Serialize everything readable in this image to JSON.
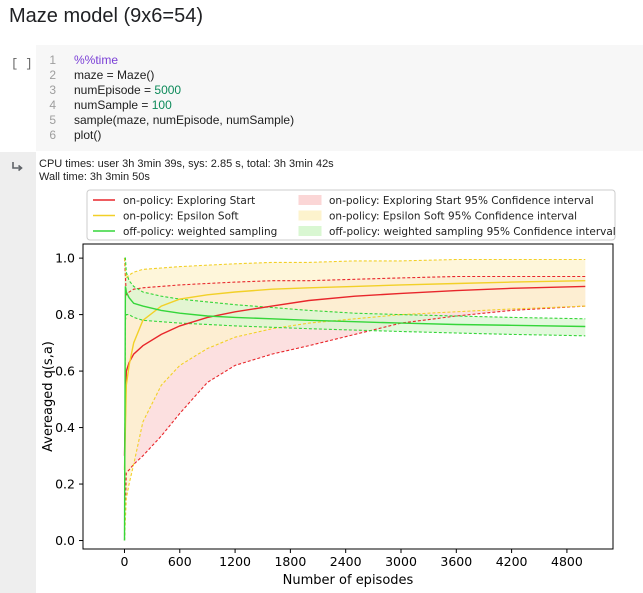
{
  "heading": "Maze model (9x6=54)",
  "cell": {
    "run_indicator": "[ ]",
    "lines": [
      {
        "n": "1",
        "kind": "magic",
        "text": "%%time"
      },
      {
        "n": "2",
        "kind": "plain",
        "text": "maze = Maze()"
      },
      {
        "n": "3",
        "kind": "assign-num",
        "text": "numEpisode = ",
        "num": "5000"
      },
      {
        "n": "4",
        "kind": "assign-num",
        "text": "numSample = ",
        "num": "100"
      },
      {
        "n": "5",
        "kind": "plain",
        "text": "sample(maze, numEpisode, numSample)"
      },
      {
        "n": "6",
        "kind": "plain",
        "text": "plot()"
      }
    ]
  },
  "output": {
    "icon": "output-arrow-icon",
    "lines": [
      "CPU times: user 3h 3min 39s, sys: 2.85 s, total: 3h 3min 42s",
      "Wall time: 3h 3min 50s"
    ]
  },
  "chart_data": {
    "type": "line",
    "xlabel": "Number of episodes",
    "ylabel": "Avereaged q(s,a)",
    "xlim": [
      -450,
      5300
    ],
    "ylim": [
      -0.03,
      1.05
    ],
    "xticks": [
      0,
      600,
      1200,
      1800,
      2400,
      3000,
      3600,
      4200,
      4800
    ],
    "yticks": [
      0.0,
      0.2,
      0.4,
      0.6,
      0.8,
      1.0
    ],
    "grid": false,
    "legend_position": "top",
    "legend": [
      {
        "label": "on-policy: Exploring Start",
        "kind": "line",
        "color": "#e8262b"
      },
      {
        "label": "on-policy: Epsilon Soft",
        "kind": "line",
        "color": "#f2d028"
      },
      {
        "label": "off-policy: weighted sampling",
        "kind": "line",
        "color": "#35d63a"
      },
      {
        "label": "on-policy: Exploring Start 95% Confidence interval",
        "kind": "band",
        "color": "#fbd6d6"
      },
      {
        "label": "on-policy: Epsilon Soft 95% Confidence interval",
        "kind": "band",
        "color": "#fdf3cd"
      },
      {
        "label": "off-policy: weighted sampling 95% Confidence interval",
        "kind": "band",
        "color": "#d9f7d2"
      }
    ],
    "series": [
      {
        "name": "on-policy: Exploring Start",
        "color": "#e8262b",
        "band_fill": "#fbd6d6",
        "x": [
          0,
          20,
          50,
          100,
          200,
          400,
          600,
          900,
          1200,
          1600,
          2000,
          2500,
          3000,
          3600,
          4200,
          5000
        ],
        "mean": [
          0.3,
          0.6,
          0.63,
          0.66,
          0.69,
          0.73,
          0.76,
          0.79,
          0.81,
          0.83,
          0.85,
          0.865,
          0.875,
          0.885,
          0.893,
          0.9
        ],
        "lower": [
          0.0,
          0.24,
          0.25,
          0.27,
          0.3,
          0.37,
          0.45,
          0.56,
          0.62,
          0.66,
          0.69,
          0.73,
          0.77,
          0.795,
          0.815,
          0.83
        ],
        "upper": [
          1.0,
          0.87,
          0.88,
          0.89,
          0.895,
          0.9,
          0.905,
          0.91,
          0.915,
          0.92,
          0.92,
          0.925,
          0.93,
          0.935,
          0.935,
          0.935
        ]
      },
      {
        "name": "on-policy: Epsilon Soft",
        "color": "#f2d028",
        "band_fill": "#fdf3cd",
        "x": [
          0,
          20,
          50,
          100,
          200,
          400,
          600,
          900,
          1200,
          1600,
          2000,
          2500,
          3000,
          3600,
          4200,
          5000
        ],
        "mean": [
          0.25,
          0.55,
          0.62,
          0.7,
          0.78,
          0.83,
          0.855,
          0.87,
          0.88,
          0.89,
          0.895,
          0.9,
          0.905,
          0.91,
          0.915,
          0.92
        ],
        "lower": [
          0.0,
          0.15,
          0.2,
          0.27,
          0.42,
          0.55,
          0.62,
          0.68,
          0.72,
          0.75,
          0.77,
          0.785,
          0.8,
          0.81,
          0.82,
          0.83
        ],
        "upper": [
          1.0,
          0.93,
          0.94,
          0.95,
          0.96,
          0.965,
          0.97,
          0.975,
          0.98,
          0.985,
          0.985,
          0.99,
          0.99,
          0.995,
          0.995,
          0.995
        ]
      },
      {
        "name": "off-policy: weighted sampling",
        "color": "#35d63a",
        "band_fill": "#d9f7d2",
        "x": [
          0,
          10,
          20,
          50,
          100,
          200,
          400,
          600,
          900,
          1200,
          1600,
          2000,
          2500,
          3000,
          3600,
          4200,
          5000
        ],
        "mean": [
          0.0,
          0.9,
          0.88,
          0.86,
          0.84,
          0.83,
          0.815,
          0.805,
          0.795,
          0.79,
          0.785,
          0.78,
          0.775,
          0.77,
          0.765,
          0.762,
          0.758
        ],
        "lower": [
          0.0,
          0.78,
          0.8,
          0.8,
          0.79,
          0.78,
          0.775,
          0.77,
          0.765,
          0.76,
          0.755,
          0.75,
          0.745,
          0.74,
          0.735,
          0.73,
          0.725
        ],
        "upper": [
          1.0,
          1.0,
          0.95,
          0.92,
          0.9,
          0.88,
          0.865,
          0.855,
          0.845,
          0.835,
          0.825,
          0.815,
          0.805,
          0.8,
          0.795,
          0.79,
          0.785
        ]
      }
    ]
  }
}
